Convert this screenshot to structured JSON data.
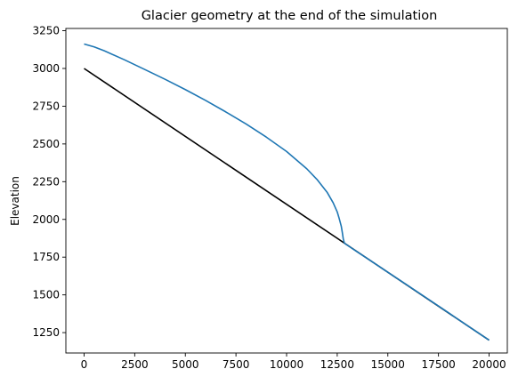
{
  "chart_data": {
    "type": "line",
    "title": "Glacier geometry at the end of the simulation",
    "xlabel": "",
    "ylabel": "Elevation",
    "xlim": [
      -900,
      20900
    ],
    "ylim": [
      1115,
      3265
    ],
    "xticks": [
      0,
      2500,
      5000,
      7500,
      10000,
      12500,
      15000,
      17500,
      20000
    ],
    "yticks": [
      1250,
      1500,
      1750,
      2000,
      2250,
      2500,
      2750,
      3000,
      3250
    ],
    "grid": false,
    "legend": "none",
    "series": [
      {
        "id": "bed",
        "color": "#000000",
        "x": [
          0,
          20000
        ],
        "y": [
          3000,
          1200
        ]
      },
      {
        "id": "surface",
        "color": "#1f77b4",
        "x": [
          0,
          500,
          1000,
          2000,
          3000,
          4000,
          5000,
          6000,
          7000,
          8000,
          9000,
          10000,
          11000,
          11500,
          12000,
          12300,
          12500,
          12600,
          12700,
          12750,
          12800,
          12850,
          12900,
          13500,
          14000,
          15000,
          16000,
          17000,
          18000,
          19000,
          20000
        ],
        "y": [
          3162,
          3143,
          3117,
          3057,
          2993,
          2928,
          2860,
          2788,
          2712,
          2632,
          2545,
          2450,
          2335,
          2265,
          2180,
          2110,
          2050,
          2005,
          1955,
          1915,
          1870,
          1845,
          1838,
          1784,
          1740,
          1650,
          1561,
          1471,
          1381,
          1290,
          1200
        ]
      }
    ]
  }
}
